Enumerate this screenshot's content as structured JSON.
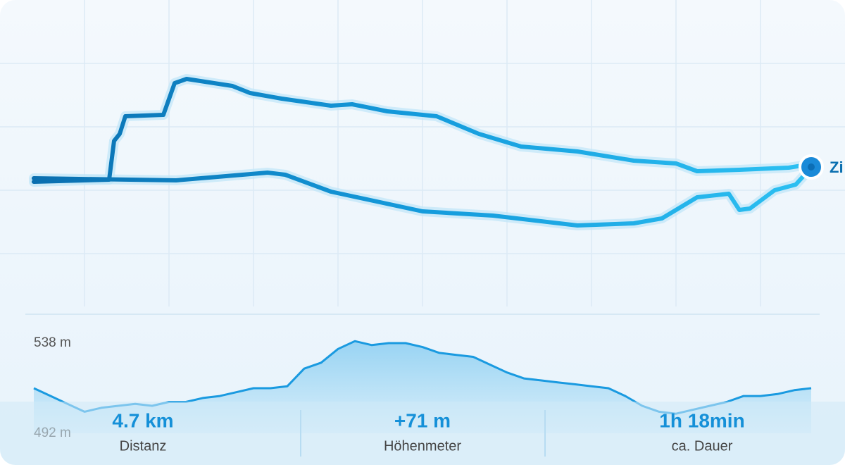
{
  "map": {
    "end_label": "Zi"
  },
  "chart_data": {
    "type": "area",
    "color": "#1a9ae0",
    "values": [
      515,
      511,
      507,
      503,
      505,
      506,
      507,
      506,
      508,
      508,
      510,
      511,
      513,
      515,
      515,
      516,
      525,
      528,
      535,
      539,
      537,
      538,
      538,
      536,
      533,
      532,
      531,
      527,
      523,
      520,
      519,
      518,
      517,
      516,
      515,
      511,
      506,
      503,
      502,
      504,
      506,
      508,
      511,
      511,
      512,
      514,
      515
    ],
    "ylim": [
      492,
      538
    ],
    "yticks": [
      {
        "value": 538,
        "label": "538 m"
      },
      {
        "value": 492,
        "label": "492 m"
      }
    ]
  },
  "stats": [
    {
      "value": "4.7 km",
      "label": "Distanz"
    },
    {
      "value": "+71 m",
      "label": "Höhenmeter"
    },
    {
      "value": "1h 18min",
      "label": "ca. Dauer"
    }
  ]
}
